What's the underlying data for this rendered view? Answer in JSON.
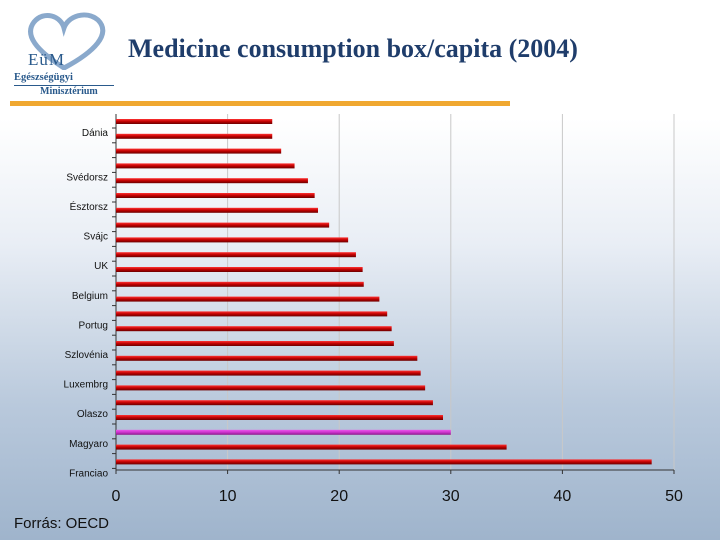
{
  "title": "Medicine consumption box/capita (2004)",
  "source": "Forrás: OECD",
  "logo": {
    "letters": "EüM",
    "line1": "Egészségügyi",
    "line2": "Minisztérium"
  },
  "colors": {
    "bar": "#c00000",
    "bar_dark": "#6a0000",
    "highlight": "#cc33cc",
    "accent": "#f0a830",
    "title": "#1f3d6b"
  },
  "chart_data": {
    "type": "bar",
    "orientation": "horizontal",
    "title": "Medicine consumption box/capita (2004)",
    "xlim": [
      0,
      50
    ],
    "xticks": [
      0,
      10,
      20,
      30,
      40,
      50
    ],
    "grid": true,
    "category_labels": [
      "Dánia",
      "Svédorsz",
      "Észtorsz",
      "Svájc",
      "UK",
      "Belgium",
      "Portug",
      "Szlovénia",
      "Luxembrg",
      "Olaszo",
      "Magyaro",
      "Franciao"
    ],
    "bars": [
      {
        "value": 14.0,
        "label": "Dánia",
        "highlight": false
      },
      {
        "value": 14.0,
        "label": "",
        "highlight": false
      },
      {
        "value": 14.8,
        "label": "",
        "highlight": false
      },
      {
        "value": 16.0,
        "label": "Svédorsz",
        "highlight": false
      },
      {
        "value": 17.2,
        "label": "",
        "highlight": false
      },
      {
        "value": 17.8,
        "label": "Észtorsz",
        "highlight": false
      },
      {
        "value": 18.1,
        "label": "",
        "highlight": false
      },
      {
        "value": 19.1,
        "label": "Svájc",
        "highlight": false
      },
      {
        "value": 20.8,
        "label": "",
        "highlight": false
      },
      {
        "value": 21.5,
        "label": "UK",
        "highlight": false
      },
      {
        "value": 22.1,
        "label": "",
        "highlight": false
      },
      {
        "value": 22.2,
        "label": "Belgium",
        "highlight": false
      },
      {
        "value": 23.6,
        "label": "",
        "highlight": false
      },
      {
        "value": 24.3,
        "label": "Portug",
        "highlight": false
      },
      {
        "value": 24.7,
        "label": "",
        "highlight": false
      },
      {
        "value": 24.9,
        "label": "Szlovénia",
        "highlight": false
      },
      {
        "value": 27.0,
        "label": "",
        "highlight": false
      },
      {
        "value": 27.3,
        "label": "Luxembrg",
        "highlight": false
      },
      {
        "value": 27.7,
        "label": "",
        "highlight": false
      },
      {
        "value": 28.4,
        "label": "Olaszo",
        "highlight": false
      },
      {
        "value": 29.3,
        "label": "",
        "highlight": false
      },
      {
        "value": 30.0,
        "label": "Magyaro",
        "highlight": true
      },
      {
        "value": 35.0,
        "label": "",
        "highlight": false
      },
      {
        "value": 48.0,
        "label": "Franciao",
        "highlight": false
      }
    ]
  }
}
